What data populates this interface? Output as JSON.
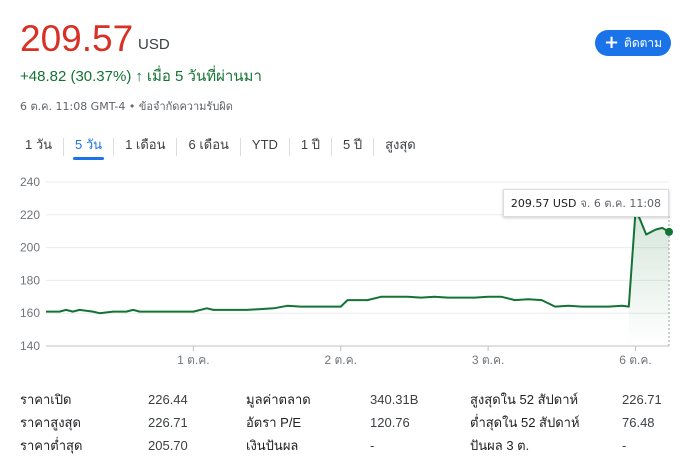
{
  "quote": {
    "price": "209.57",
    "currency": "USD",
    "change_text": "+48.82 (30.37%)",
    "change_arrow": "↑",
    "change_period": "เมื่อ 5 วันที่ผ่านมา",
    "timestamp": "6 ต.ค. 11:08 GMT-4",
    "separator": "•",
    "disclaimer": "ข้อจำกัดความรับผิด",
    "follow_label": "ติดตาม",
    "follow_icon": "plus-icon",
    "up_color": "#137333",
    "price_color": "#d93025",
    "accent_color": "#1a73e8"
  },
  "tabs": [
    {
      "label": "1 วัน",
      "active": false
    },
    {
      "label": "5 วัน",
      "active": true
    },
    {
      "label": "1 เดือน",
      "active": false
    },
    {
      "label": "6 เดือน",
      "active": false
    },
    {
      "label": "YTD",
      "active": false
    },
    {
      "label": "1 ปี",
      "active": false
    },
    {
      "label": "5 ปี",
      "active": false
    },
    {
      "label": "สูงสุด",
      "active": false
    }
  ],
  "chart_data": {
    "type": "area",
    "y_ticks": [
      240,
      220,
      200,
      180,
      160,
      140
    ],
    "ylim": [
      140,
      240
    ],
    "x_ticks": [
      {
        "label": "1 ต.ค.",
        "x": 11
      },
      {
        "label": "2 ต.ค.",
        "x": 22
      },
      {
        "label": "3 ต.ค.",
        "x": 33
      },
      {
        "label": "6 ต.ค.",
        "x": 44
      }
    ],
    "xlim": [
      0,
      46.5
    ],
    "grid": true,
    "line_color": "#137333",
    "series": [
      {
        "values": [
          [
            0,
            161
          ],
          [
            1,
            161
          ],
          [
            1.5,
            162
          ],
          [
            2,
            161
          ],
          [
            2.5,
            162
          ],
          [
            3,
            161.5
          ],
          [
            3.5,
            161
          ],
          [
            4,
            160
          ],
          [
            5,
            161
          ],
          [
            6,
            161
          ],
          [
            6.5,
            162
          ],
          [
            7,
            161
          ],
          [
            8,
            161
          ],
          [
            9,
            161
          ],
          [
            10,
            161
          ],
          [
            11,
            161
          ],
          [
            12,
            163
          ],
          [
            12.5,
            162
          ],
          [
            13,
            162
          ],
          [
            14,
            162
          ],
          [
            15,
            162
          ],
          [
            16,
            162.5
          ],
          [
            17,
            163
          ],
          [
            18,
            164.5
          ],
          [
            19,
            164
          ],
          [
            20,
            164
          ],
          [
            21,
            164
          ],
          [
            22,
            164
          ],
          [
            22.5,
            168
          ],
          [
            23,
            168
          ],
          [
            24,
            168
          ],
          [
            25,
            170
          ],
          [
            26,
            170
          ],
          [
            27,
            170
          ],
          [
            28,
            169.5
          ],
          [
            29,
            170
          ],
          [
            30,
            169.5
          ],
          [
            31,
            169.5
          ],
          [
            32,
            169.5
          ],
          [
            33,
            170
          ],
          [
            34,
            170
          ],
          [
            35,
            168
          ],
          [
            36,
            168.5
          ],
          [
            37,
            168
          ],
          [
            38,
            164
          ],
          [
            39,
            164.5
          ],
          [
            40,
            164
          ],
          [
            41,
            164
          ],
          [
            42,
            164
          ],
          [
            43,
            164.5
          ],
          [
            43.5,
            164
          ],
          [
            44,
            222
          ],
          [
            44.3,
            218
          ],
          [
            44.8,
            208
          ],
          [
            45.5,
            211
          ],
          [
            46,
            212
          ],
          [
            46.5,
            209.57
          ]
        ]
      }
    ],
    "tooltip": {
      "value": "209.57 USD",
      "time": "จ. 6 ต.ค. 11:08"
    }
  },
  "stats": {
    "col1": [
      {
        "label": "ราคาเปิด",
        "value": "226.44"
      },
      {
        "label": "ราคาสูงสุด",
        "value": "226.71"
      },
      {
        "label": "ราคาต่ำสุด",
        "value": "205.70"
      }
    ],
    "col2": [
      {
        "label": "มูลค่าตลาด",
        "value": "340.31B"
      },
      {
        "label": "อัตรา P/E",
        "value": "120.76"
      },
      {
        "label": "เงินปันผล",
        "value": "-"
      }
    ],
    "col3": [
      {
        "label": "สูงสุดใน 52 สัปดาห์",
        "value": "226.71"
      },
      {
        "label": "ต่ำสุดใน 52 สัปดาห์",
        "value": "76.48"
      },
      {
        "label": "ปันผล 3 ต.",
        "value": "-"
      }
    ]
  }
}
